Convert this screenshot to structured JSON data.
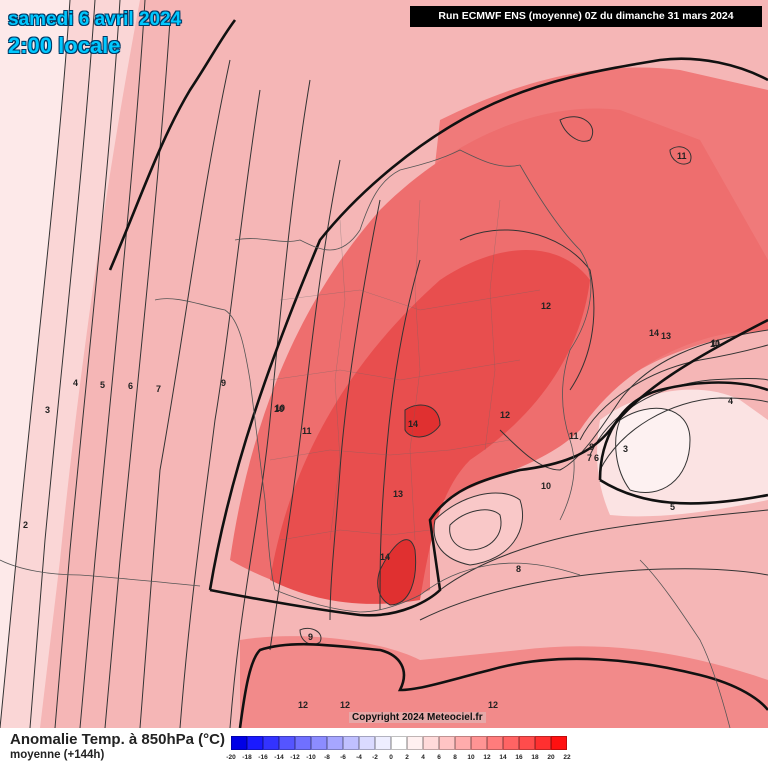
{
  "header": {
    "date_line": "samedi 6 avril 2024",
    "time_line": "2:00 locale",
    "run_info": "Run ECMWF ENS (moyenne) 0Z du dimanche 31 mars 2024"
  },
  "map": {
    "contour_labels": [
      {
        "text": "11"
      },
      {
        "text": "12"
      },
      {
        "text": "14"
      },
      {
        "text": "13"
      },
      {
        "text": "10"
      },
      {
        "text": "4"
      },
      {
        "text": "3"
      },
      {
        "text": "5"
      },
      {
        "text": "8"
      },
      {
        "text": "7"
      },
      {
        "text": "6"
      },
      {
        "text": "2"
      },
      {
        "text": "9"
      },
      {
        "text": "11"
      },
      {
        "text": "10"
      },
      {
        "text": "11"
      },
      {
        "text": "12"
      },
      {
        "text": "14"
      },
      {
        "text": "13"
      },
      {
        "text": "14"
      },
      {
        "text": "3"
      },
      {
        "text": "4"
      },
      {
        "text": "5"
      },
      {
        "text": "6"
      },
      {
        "text": "7"
      },
      {
        "text": "9"
      },
      {
        "text": "10"
      },
      {
        "text": "11"
      },
      {
        "text": "10"
      },
      {
        "text": "8"
      },
      {
        "text": "7"
      },
      {
        "text": "6"
      },
      {
        "text": "3"
      },
      {
        "text": "5"
      },
      {
        "text": "4"
      },
      {
        "text": "8"
      },
      {
        "text": "9"
      },
      {
        "text": "12"
      },
      {
        "text": "12"
      },
      {
        "text": "12"
      }
    ],
    "colors": {
      "ocean_west": "#fde9e9",
      "mid": "#f8b8b8",
      "warm": "#ee7a7a",
      "core": "#e85050",
      "hot": "#e23a3a"
    }
  },
  "copyright": "Copyright 2024 Meteociel.fr",
  "legend": {
    "title": "Anomalie Temp. à 850hPa (°C)",
    "subtitle": "moyenne   (+144h)",
    "colors": [
      "#0000e6",
      "#1a1aff",
      "#3333ff",
      "#5555ff",
      "#7070ff",
      "#8c8cff",
      "#a6a6ff",
      "#c0c0ff",
      "#dadaff",
      "#eeeeff",
      "#ffffff",
      "#fff0f0",
      "#ffdada",
      "#ffc4c4",
      "#ffacac",
      "#ff9494",
      "#ff7c7c",
      "#ff6464",
      "#ff4c4c",
      "#ff3030",
      "#ff1010"
    ],
    "ticks": [
      "-20",
      "-18",
      "-16",
      "-14",
      "-12",
      "-10",
      "-8",
      "-6",
      "-4",
      "-2",
      "0",
      "2",
      "4",
      "6",
      "8",
      "10",
      "12",
      "14",
      "16",
      "18",
      "20",
      "22"
    ]
  }
}
